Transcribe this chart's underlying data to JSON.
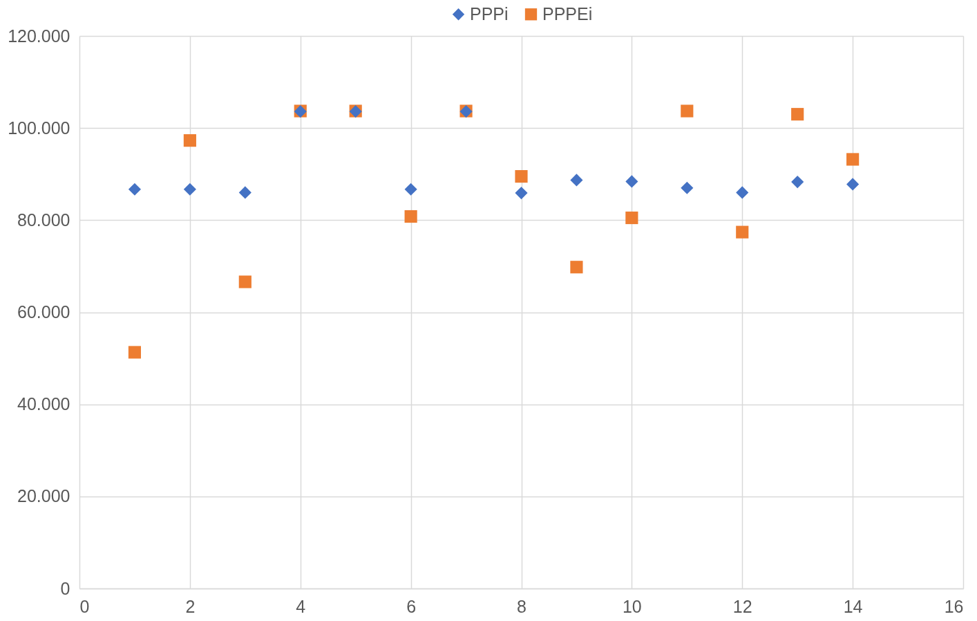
{
  "chart_data": {
    "type": "scatter",
    "x": [
      1,
      2,
      3,
      4,
      5,
      6,
      7,
      8,
      9,
      10,
      11,
      12,
      13,
      14
    ],
    "series": [
      {
        "name": "PPPi",
        "color": "#4472c4",
        "marker": "diamond",
        "values": [
          86700,
          86700,
          86000,
          103600,
          103600,
          86700,
          103600,
          85900,
          88700,
          88400,
          87000,
          86000,
          88300,
          87800
        ]
      },
      {
        "name": "PPPEi",
        "color": "#ed7d31",
        "marker": "square",
        "values": [
          51300,
          97300,
          66600,
          103700,
          103700,
          80800,
          103700,
          89500,
          69800,
          80500,
          103700,
          77400,
          103000,
          93200
        ]
      }
    ],
    "xlim": [
      0,
      16
    ],
    "xticks": [
      0,
      2,
      4,
      6,
      8,
      10,
      12,
      14,
      16
    ],
    "ylim": [
      0,
      120000
    ],
    "yticks": [
      0,
      {
        "value": 20000,
        "label": "20.000"
      },
      {
        "value": 40000,
        "label": "40.000"
      },
      {
        "value": 60000,
        "label": "60.000"
      },
      {
        "value": 80000,
        "label": "80.000"
      },
      {
        "value": 100000,
        "label": "100.000"
      },
      {
        "value": 120000,
        "label": "120.000"
      }
    ],
    "grid": true,
    "legend": "top"
  }
}
